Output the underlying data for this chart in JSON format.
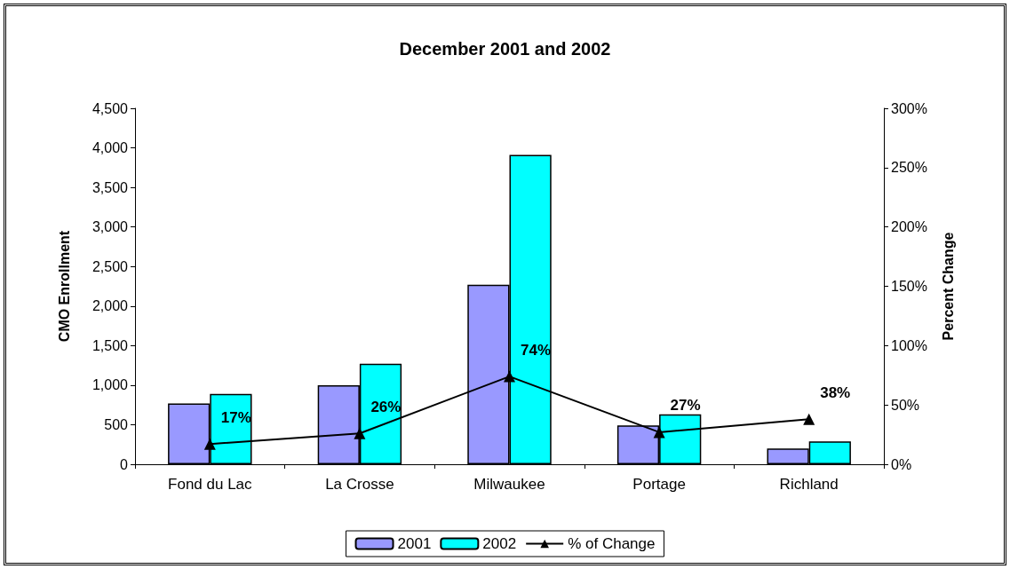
{
  "chart_data": {
    "type": "bar",
    "title": "December 2001 and 2002",
    "ylabel": "CMO Enrollment",
    "y2label": "Percent Change",
    "categories": [
      "Fond du Lac",
      "La Crosse",
      "Milwaukee",
      "Portage",
      "Richland"
    ],
    "series": [
      {
        "name": "2001",
        "color": "#9999ff",
        "values": [
          770,
          1000,
          2270,
          490,
          200
        ]
      },
      {
        "name": "2002",
        "color": "#00ffff",
        "values": [
          890,
          1270,
          3910,
          630,
          290
        ]
      },
      {
        "name": "% of Change",
        "type": "line",
        "axis": "y2",
        "color": "#000000",
        "marker": "triangle",
        "values": [
          17,
          26,
          74,
          27,
          38
        ],
        "value_labels": [
          "17%",
          "26%",
          "74%",
          "27%",
          "38%"
        ]
      }
    ],
    "ylim": [
      0,
      4500
    ],
    "yticks": [
      {
        "value": 0,
        "label": "0"
      },
      {
        "value": 500,
        "label": "500"
      },
      {
        "value": 1000,
        "label": "1,000"
      },
      {
        "value": 1500,
        "label": "1,500"
      },
      {
        "value": 2000,
        "label": "2,000"
      },
      {
        "value": 2500,
        "label": "2,500"
      },
      {
        "value": 3000,
        "label": "3,000"
      },
      {
        "value": 3500,
        "label": "3,500"
      },
      {
        "value": 4000,
        "label": "4,000"
      },
      {
        "value": 4500,
        "label": "4,500"
      }
    ],
    "y2lim": [
      0,
      300
    ],
    "y2ticks": [
      {
        "value": 0,
        "label": "0%"
      },
      {
        "value": 50,
        "label": "50%"
      },
      {
        "value": 100,
        "label": "100%"
      },
      {
        "value": 150,
        "label": "150%"
      },
      {
        "value": 200,
        "label": "200%"
      },
      {
        "value": 250,
        "label": "250%"
      },
      {
        "value": 300,
        "label": "300%"
      }
    ],
    "grid": false,
    "legend": "bottom"
  }
}
